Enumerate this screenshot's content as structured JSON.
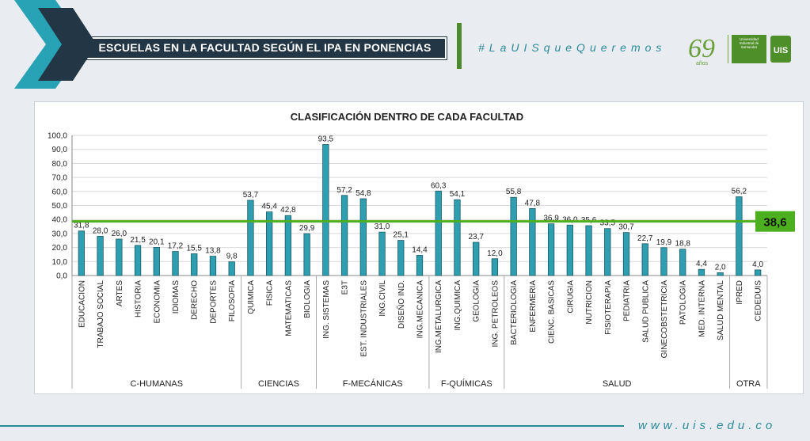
{
  "header": {
    "title": "ESCUELAS EN LA FACULTAD SEGÚN EL IPA EN PONENCIAS"
  },
  "hashtag": "#LaUISqueQueremos",
  "logo": {
    "anniversary": "69",
    "anniversary_sub": "años",
    "university_name": "Universidad Industrial de Santander",
    "seal_text": "UIS"
  },
  "footer": {
    "url": "www.uis.edu.co"
  },
  "colors": {
    "bar": "#2e9fb1",
    "average_line": "#4caf1f",
    "header_bg": "#233645",
    "teal": "#2a8a98"
  },
  "chart_data": {
    "type": "bar",
    "title": "CLASIFICACIÓN DENTRO DE CADA FACULTAD",
    "ylim": [
      0,
      100
    ],
    "yticks": [
      "0,0",
      "10,0",
      "20,0",
      "30,0",
      "40,0",
      "50,0",
      "60,0",
      "70,0",
      "80,0",
      "90,0",
      "100,0"
    ],
    "grid": true,
    "categories": [
      "EDUCACION",
      "TRABAJO SOCIAL",
      "ARTES",
      "HISTORIA",
      "ECONOMIA",
      "IDIOMAS",
      "DERECHO",
      "DEPORTES",
      "FILOSOFIA",
      "QUIMICA",
      "FISICA",
      "MATEMATICAS",
      "BIOLOGIA",
      "ING. SISTEMAS",
      "E3T",
      "EST. INDUSTRIALES",
      "ING.CIVIL",
      "DISEÑO IND.",
      "ING.MECANICA",
      "ING.METALURGICA",
      "ING.QUIMICA",
      "GEOLOGIA",
      "ING. PETROLEOS",
      "BACTERIOLOGIA",
      "ENFERMERIA",
      "CIENC. BASICAS",
      "CIRUGIA",
      "NUTRICION",
      "FISIOTERAPIA",
      "PEDIATRIA",
      "SALUD PUBLICA",
      "GINECOBSTETRICIA",
      "PATOLOGIA",
      "MED. INTERNA",
      "SALUD MENTAL",
      "IPRED",
      "CEDEDUIS"
    ],
    "values": [
      31.8,
      28.0,
      26.0,
      21.5,
      20.1,
      17.2,
      15.5,
      13.8,
      9.8,
      53.7,
      45.4,
      42.8,
      29.9,
      93.5,
      57.2,
      54.8,
      31.0,
      25.1,
      14.4,
      60.3,
      54.1,
      23.7,
      12.0,
      55.8,
      47.8,
      36.9,
      36.0,
      35.6,
      33.5,
      30.7,
      22.7,
      19.9,
      18.8,
      4.4,
      2.0,
      56.2,
      4.0
    ],
    "value_labels": [
      "31,8",
      "28,0",
      "26,0",
      "21,5",
      "20,1",
      "17,2",
      "15,5",
      "13,8",
      "9,8",
      "53,7",
      "45,4",
      "42,8",
      "29,9",
      "93,5",
      "57,2",
      "54,8",
      "31,0",
      "25,1",
      "14,4",
      "60,3",
      "54,1",
      "23,7",
      "12,0",
      "55,8",
      "47,8",
      "36,9",
      "36,0",
      "35,6",
      "33,5",
      "30,7",
      "22,7",
      "19,9",
      "18,8",
      "4,4",
      "2,0",
      "56,2",
      "4,0"
    ],
    "groups": [
      {
        "name": "C-HUMANAS",
        "start": 0,
        "end": 8
      },
      {
        "name": "CIENCIAS",
        "start": 9,
        "end": 12
      },
      {
        "name": "F-MECÁNICAS",
        "start": 13,
        "end": 18
      },
      {
        "name": "F-QUÍMICAS",
        "start": 19,
        "end": 22
      },
      {
        "name": "SALUD",
        "start": 23,
        "end": 34
      },
      {
        "name": "OTRA",
        "start": 35,
        "end": 36
      }
    ],
    "reference_line": {
      "value": 38.6,
      "label": "38,6"
    }
  }
}
